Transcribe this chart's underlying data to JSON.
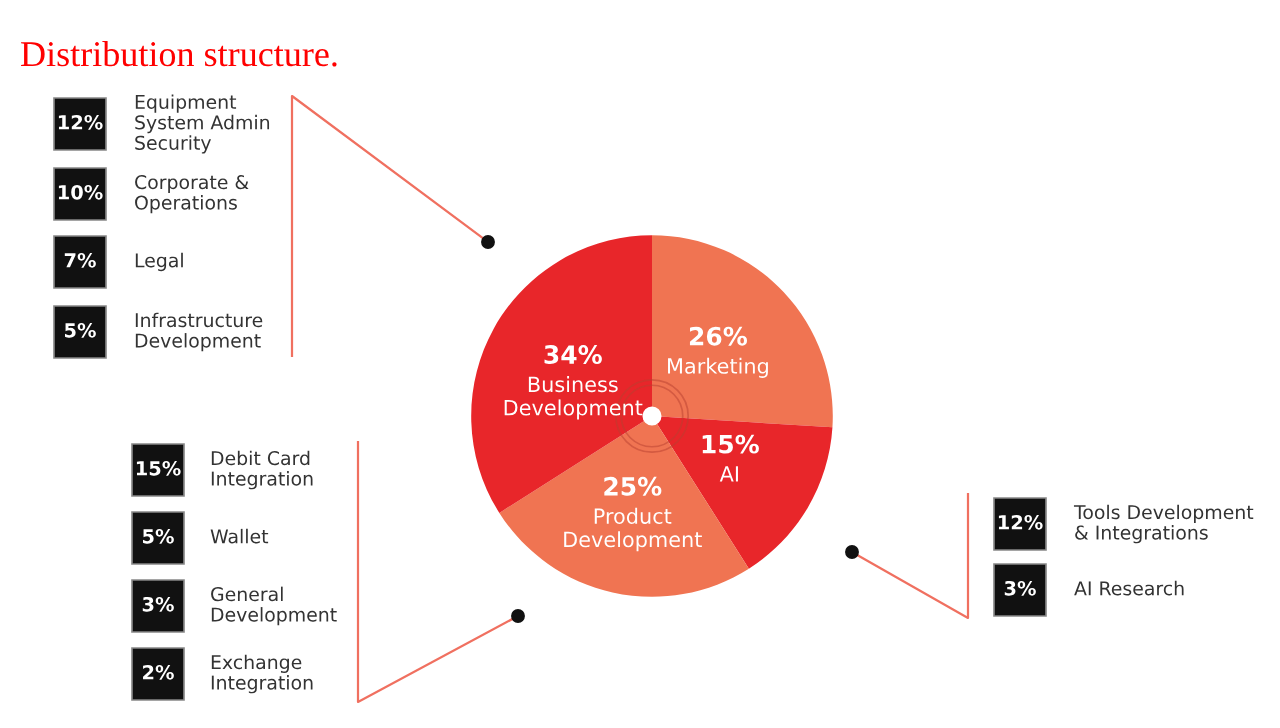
{
  "chart_data": {
    "type": "pie",
    "title": "Distribution structure.",
    "categories": [
      "Marketing",
      "AI",
      "Product\nDevelopment",
      "Business\nDevelopment"
    ],
    "values": [
      26,
      15,
      25,
      34
    ],
    "value_labels": [
      "26%",
      "15%",
      "25%",
      "34%"
    ],
    "colors": [
      "#f07452",
      "#e8262a",
      "#f07452",
      "#e8262a"
    ],
    "legend": false,
    "annotations": [
      "12%",
      "Equipment\nSystem Admin\nSecurity",
      "10%",
      "Corporate &\nOperations",
      "7%",
      "Legal",
      "5%",
      "Infrastructure\nDevelopment",
      "15%",
      "Debit Card\nIntegration",
      "5%",
      "Wallet",
      "3%",
      "General\nDevelopment",
      "2%",
      "Exchange\nIntegration",
      "12%",
      "Tools Development\n& Integrations",
      "3%",
      "AI Research"
    ]
  }
}
